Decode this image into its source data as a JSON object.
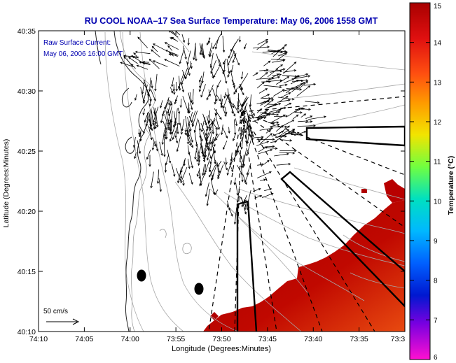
{
  "chart_data": {
    "type": "map",
    "title": "RU COOL  NOAA–17  Sea Surface Temperature:  May 06, 2006 1558 GMT",
    "xlabel": "Longitude (Degrees:Minutes)",
    "ylabel": "Latitude (Degrees:Minutes)",
    "x_ticks": [
      "74:10",
      "74:05",
      "74:00",
      "73:55",
      "73:50",
      "73:45",
      "73:40",
      "73:35",
      "73:3"
    ],
    "y_ticks": [
      "40:35",
      "40:30",
      "40:25",
      "40:20",
      "40:15",
      "40:10"
    ],
    "annotation_lines": [
      "Raw Surface Current:",
      "May 06, 2006 16:00 GMT"
    ],
    "scale_label": "50 cm/s",
    "colorbar": {
      "label": "Temperature (°C)",
      "ticks": [
        "15",
        "14",
        "13",
        "12",
        "11",
        "10",
        "9",
        "8",
        "7",
        "6"
      ],
      "range": [
        6,
        15
      ]
    },
    "colors": {
      "title": "#0000b0",
      "sst_hot": "#b80000",
      "sst_warm": "#e23a00",
      "land": "#ffffff"
    }
  }
}
